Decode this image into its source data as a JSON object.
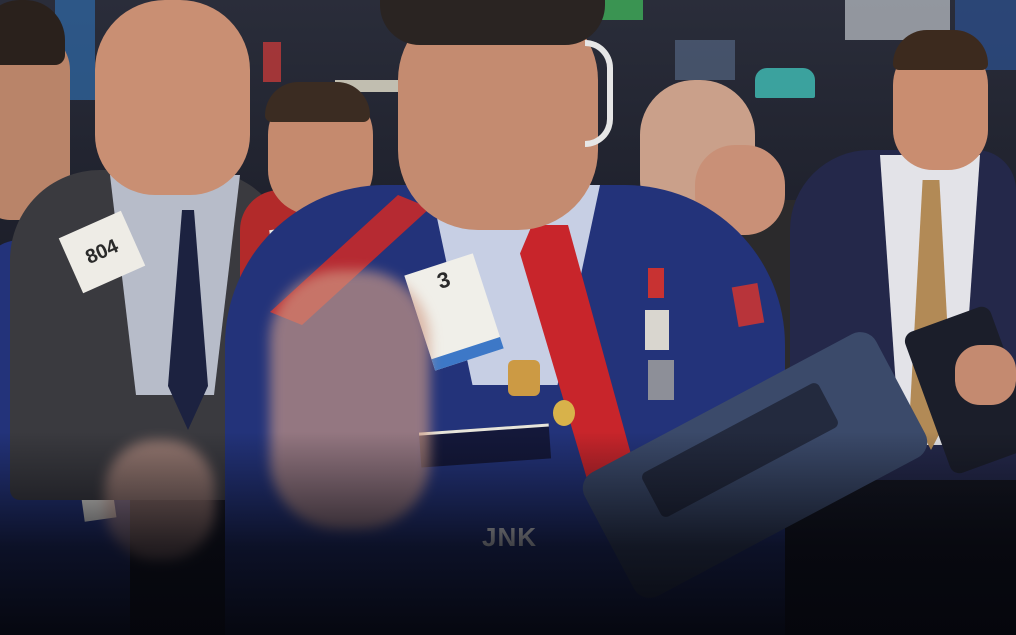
{
  "photo": {
    "badges": [
      {
        "id": "trader-left",
        "text": "804"
      },
      {
        "id": "trader-center",
        "text": "3"
      }
    ],
    "jacket_text": "JNK",
    "colors": {
      "jacket_navy": "#23337a",
      "tie_red": "#c8252b",
      "suit_dark": "#3a3a3f",
      "skin": "#c98f73",
      "background_dark": "#1b1d28",
      "screen_teal": "#3fb7b0"
    }
  }
}
